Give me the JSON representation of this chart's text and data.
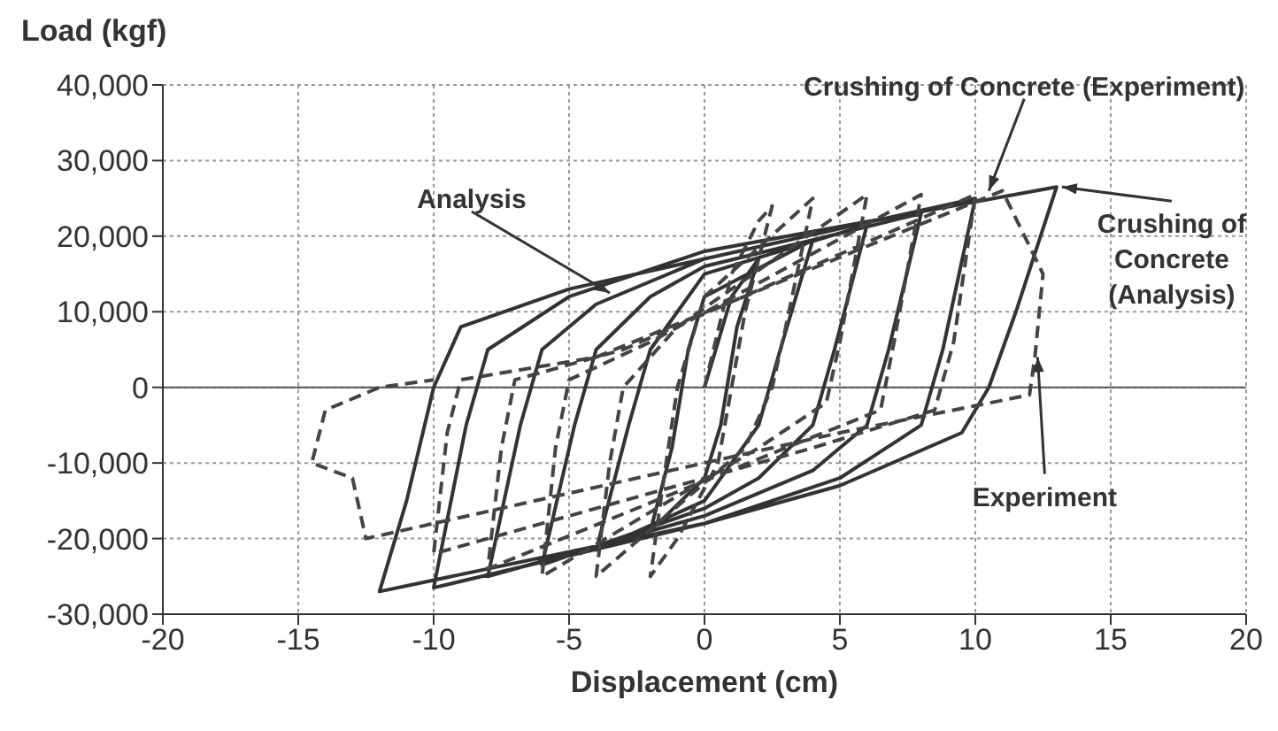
{
  "chart_data": {
    "type": "line",
    "xlabel": "Displacement (cm)",
    "ylabel": "Load (kgf)",
    "xlim": [
      -20,
      20
    ],
    "xticks": [
      -20,
      -15,
      -10,
      -5,
      0,
      5,
      10,
      15,
      20
    ],
    "ylim": [
      -30000,
      40000
    ],
    "yticks": [
      {
        "value": -30000,
        "label": "-30,000"
      },
      {
        "value": -20000,
        "label": "-20,000"
      },
      {
        "value": -10000,
        "label": "-10,000"
      },
      0,
      {
        "value": 10000,
        "label": "10,000"
      },
      {
        "value": 20000,
        "label": "20,000"
      },
      {
        "value": 30000,
        "label": "30,000"
      },
      {
        "value": 40000,
        "label": "40,000"
      }
    ],
    "grid": true,
    "marker": "none",
    "ref_lines": [
      {
        "axis": "y",
        "value": 0,
        "color": "#555555"
      }
    ],
    "series": [
      {
        "color": "#333333",
        "line_style": "solid",
        "x": [
          0,
          1,
          2,
          1.2,
          0.6,
          0,
          -2,
          -1.2,
          -0.6,
          0,
          4,
          2.8,
          2,
          0,
          -4,
          -2.8,
          -2,
          0,
          6,
          4.8,
          4,
          2,
          0,
          -6,
          -4.8,
          -4,
          -2,
          0,
          8,
          6.8,
          6,
          4,
          0,
          -8,
          -6.8,
          -6,
          -4,
          0,
          10,
          8.8,
          8,
          5,
          0,
          -10,
          -8.8,
          -8,
          -5,
          0,
          13,
          11.5,
          10.5,
          9.5,
          5,
          0,
          -12,
          -11,
          -10,
          -9,
          -5,
          0
        ],
        "values": [
          0,
          12000,
          17000,
          8000,
          -5000,
          -12000,
          -19000,
          -8000,
          5000,
          12000,
          19500,
          5000,
          -5000,
          -15000,
          -21500,
          -5000,
          5000,
          15000,
          21500,
          5000,
          -5000,
          -12000,
          -16000,
          -23500,
          -5000,
          5000,
          12000,
          16000,
          23000,
          5000,
          -5000,
          -11000,
          -17000,
          -25000,
          -5000,
          5000,
          11000,
          17000,
          25000,
          5000,
          -5000,
          -12000,
          -18000,
          -26500,
          -5000,
          5000,
          12000,
          18000,
          26500,
          10000,
          0,
          -6000,
          -13000,
          -18000,
          -27000,
          -15000,
          0,
          8000,
          13000,
          17000
        ]
      },
      {
        "color": "#444444",
        "line_style": "dashed",
        "x": [
          0,
          1,
          2,
          2.5,
          1.5,
          1,
          0.5,
          -1,
          -2,
          -1.5,
          -1,
          0,
          4,
          3,
          2.5,
          1.5,
          -4,
          -3.5,
          -3,
          -1,
          6,
          5,
          4.5,
          2,
          -6,
          -5.5,
          -5,
          -2,
          8,
          7,
          6.5,
          3,
          -8,
          -7.5,
          -7,
          -3,
          10,
          9.2,
          8.5,
          4,
          -10,
          -9.5,
          -9,
          -4,
          11,
          12.5,
          12.2,
          12,
          5,
          -12.5,
          -13,
          -14.5,
          -14,
          -12,
          -10
        ],
        "values": [
          0,
          15000,
          22000,
          24000,
          10000,
          0,
          -10000,
          -20000,
          -25000,
          -12000,
          0,
          12000,
          25000,
          8000,
          0,
          -8000,
          -25000,
          -10000,
          0,
          8000,
          25500,
          6000,
          -2000,
          -8000,
          -25000,
          -8000,
          1000,
          6000,
          25500,
          6000,
          -3000,
          -8000,
          -24000,
          -8000,
          1000,
          5000,
          25500,
          6000,
          -3000,
          -8000,
          -22000,
          -6000,
          1000,
          4000,
          26000,
          15000,
          4000,
          -1000,
          -6000,
          -20000,
          -12000,
          -10000,
          -3000,
          0,
          1000
        ]
      }
    ],
    "annotations": [
      {
        "text": "Analysis",
        "x": -3.5,
        "y": 12500
      },
      {
        "text": "Crushing of Concrete (Experiment)",
        "x": 10.5,
        "y": 26000
      },
      {
        "text": "Crushing of Concrete (Analysis)",
        "x": 13.2,
        "y": 26500
      },
      {
        "text": "Experiment",
        "x": 12.3,
        "y": 4000
      }
    ]
  }
}
